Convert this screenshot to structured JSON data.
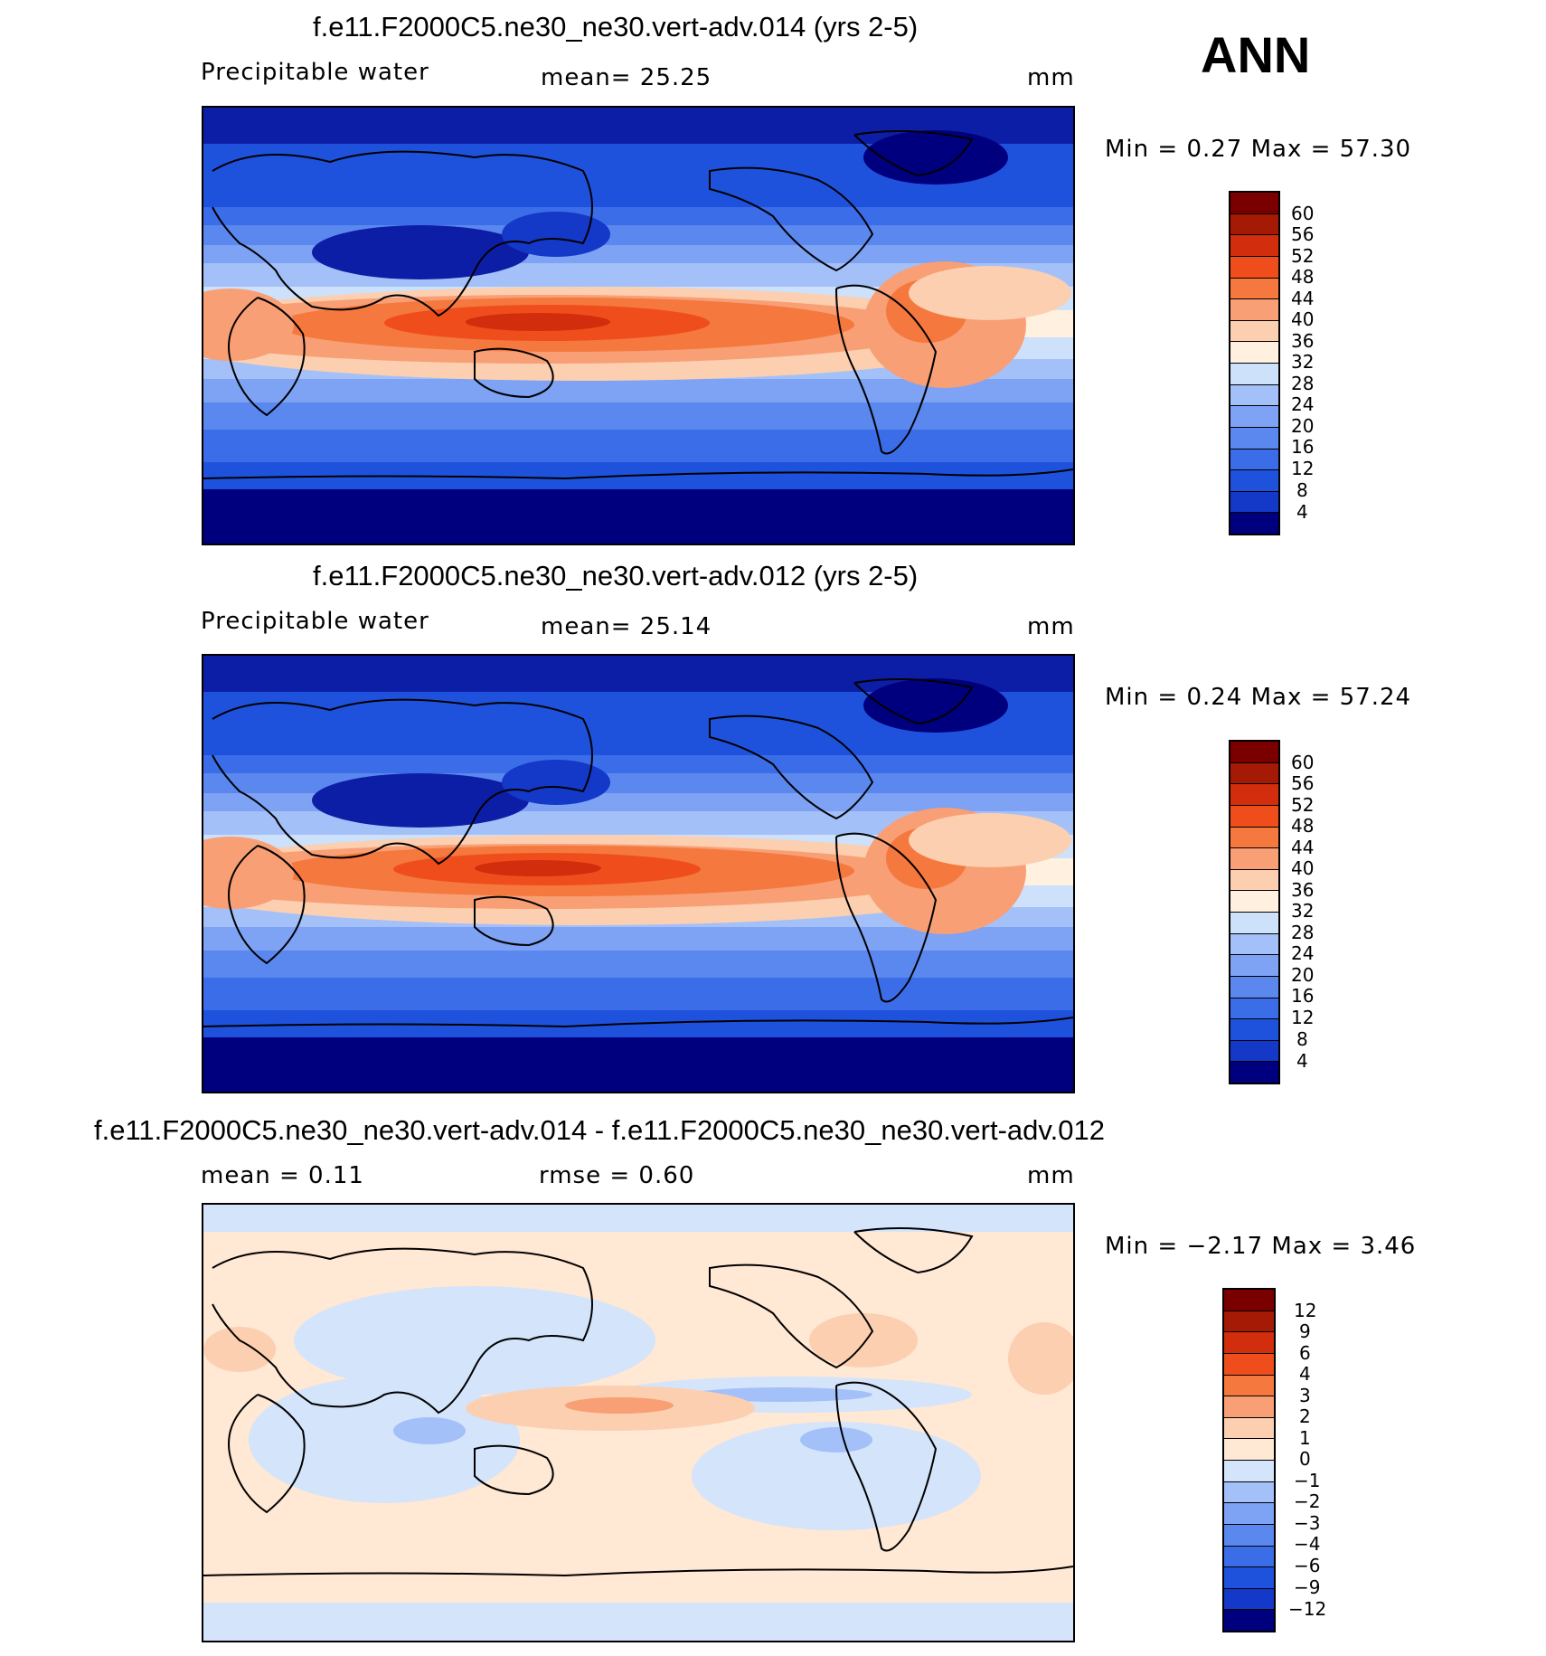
{
  "season": "ANN",
  "colors": {
    "abs": [
      "#00007f",
      "#0d1ea6",
      "#1438c7",
      "#1f52dc",
      "#3c6de8",
      "#5a88ef",
      "#7ea2f4",
      "#a4c0f8",
      "#cde1fb",
      "#fff0e0",
      "#fbcfb0",
      "#f89f75",
      "#f5783f",
      "#ef4e1c",
      "#d22d0c",
      "#a51a05",
      "#7a0000"
    ],
    "diff": [
      "#00007f",
      "#0d1ea6",
      "#1438c7",
      "#1f52dc",
      "#3c6de8",
      "#5a88ef",
      "#7ea2f4",
      "#a4c0f8",
      "#d4e4fb",
      "#ffe8d4",
      "#fbcfb0",
      "#f89f75",
      "#f5783f",
      "#ef4e1c",
      "#d22d0c",
      "#a51a05",
      "#7a0000"
    ]
  },
  "panels": [
    {
      "title": "f.e11.F2000C5.ne30_ne30.vert-adv.014 (yrs 2-5)",
      "left_label": "Precipitable  water",
      "center_label": "mean=   25.25",
      "units": "mm",
      "stats": "Min  =      0.27  Max  =    57.30",
      "field_mean": 25.25,
      "min": 0.27,
      "max": 57.3,
      "levels": [
        "60",
        "56",
        "52",
        "48",
        "44",
        "40",
        "36",
        "32",
        "28",
        "24",
        "20",
        "16",
        "12",
        "8",
        "4"
      ]
    },
    {
      "title": "f.e11.F2000C5.ne30_ne30.vert-adv.012 (yrs 2-5)",
      "left_label": "Precipitable  water",
      "center_label": "mean=   25.14",
      "units": "mm",
      "stats": "Min  =      0.24  Max  =    57.24",
      "field_mean": 25.14,
      "min": 0.24,
      "max": 57.24,
      "levels": [
        "60",
        "56",
        "52",
        "48",
        "44",
        "40",
        "36",
        "32",
        "28",
        "24",
        "20",
        "16",
        "12",
        "8",
        "4"
      ]
    },
    {
      "title": "f.e11.F2000C5.ne30_ne30.vert-adv.014 - f.e11.F2000C5.ne30_ne30.vert-adv.012",
      "left_label": "mean  =     0.11",
      "center_label": "rmse  =     0.60",
      "units": "mm",
      "stats": "Min  =    −2.17  Max  =      3.46",
      "field_mean": 0.11,
      "rmse": 0.6,
      "min": -2.17,
      "max": 3.46,
      "levels": [
        "12",
        "9",
        "6",
        "4",
        "3",
        "2",
        "1",
        "0",
        "−1",
        "−2",
        "−3",
        "−4",
        "−6",
        "−9",
        "−12"
      ]
    }
  ]
}
